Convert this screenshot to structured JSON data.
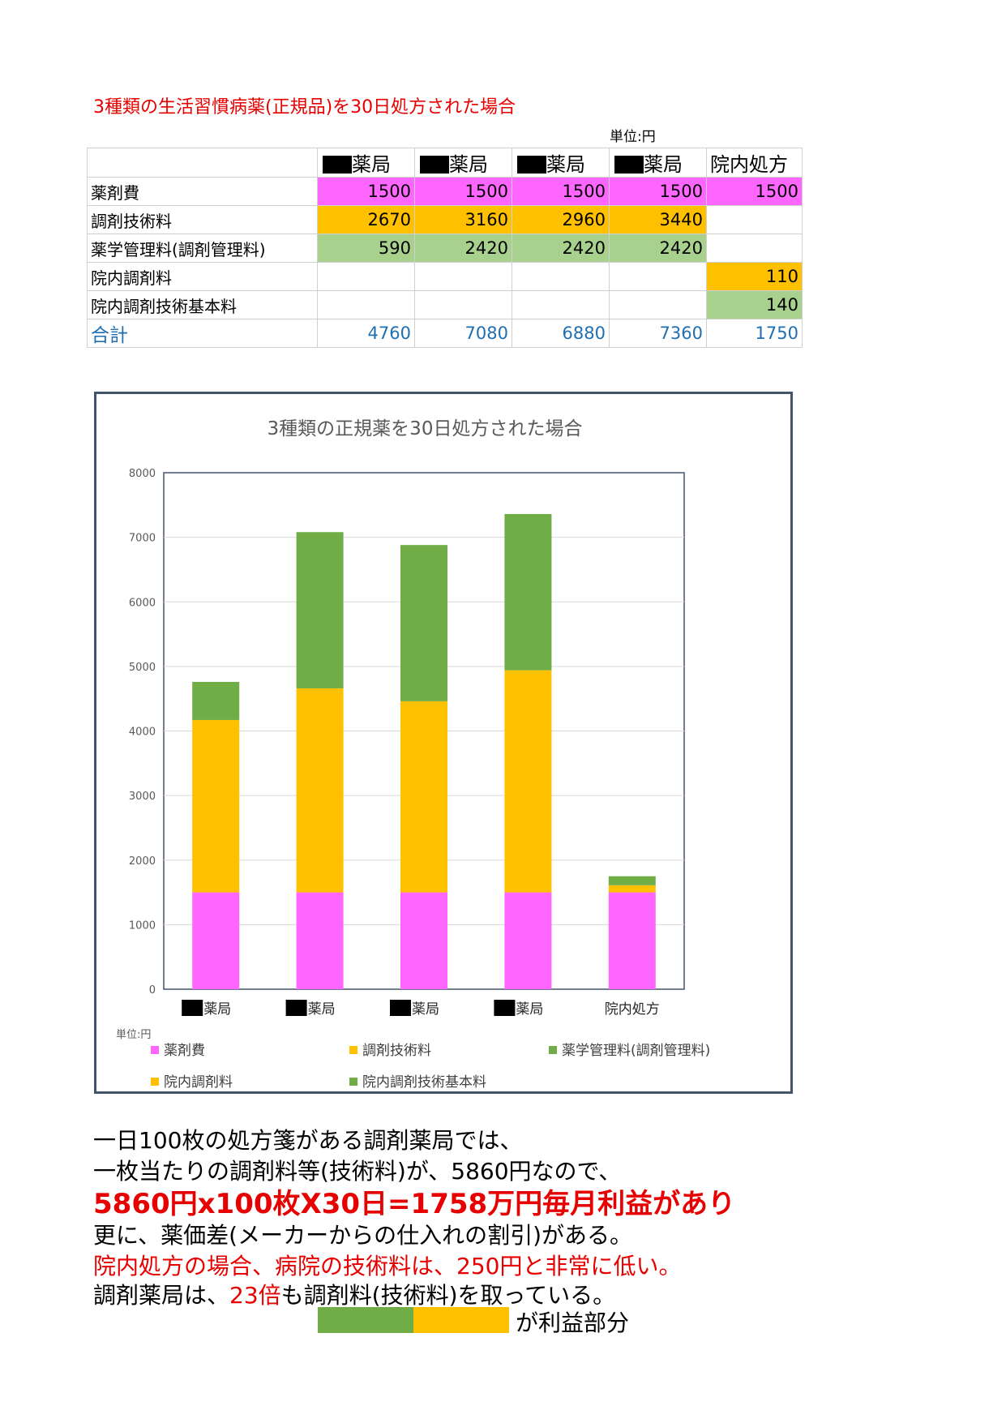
{
  "document": {
    "title": "3種類の生活習慣病薬(正規品)を30日処方された場合",
    "unit_label": "単位:円"
  },
  "table": {
    "columns": [
      "薬局",
      "薬局",
      "薬局",
      "薬局",
      "院内処方"
    ],
    "rows": [
      {
        "label": "薬剤費",
        "values": [
          "1500",
          "1500",
          "1500",
          "1500",
          "1500"
        ],
        "fills": [
          "pink",
          "pink",
          "pink",
          "pink",
          "pink"
        ]
      },
      {
        "label": "調剤技術料",
        "values": [
          "2670",
          "3160",
          "2960",
          "3440",
          ""
        ],
        "fills": [
          "orange",
          "orange",
          "orange",
          "orange",
          ""
        ]
      },
      {
        "label": "薬学管理料(調剤管理料)",
        "values": [
          "590",
          "2420",
          "2420",
          "2420",
          ""
        ],
        "fills": [
          "green",
          "green",
          "green",
          "green",
          ""
        ]
      },
      {
        "label": "院内調剤料",
        "values": [
          "",
          "",
          "",
          "",
          "110"
        ],
        "fills": [
          "",
          "",
          "",
          "",
          "orange"
        ]
      },
      {
        "label": "院内調剤技術基本料",
        "values": [
          "",
          "",
          "",
          "",
          "140"
        ],
        "fills": [
          "",
          "",
          "",
          "",
          "green"
        ]
      }
    ],
    "total": {
      "label": "合計",
      "values": [
        "4760",
        "7080",
        "6880",
        "7360",
        "1750"
      ]
    }
  },
  "chart_data": {
    "type": "bar",
    "stacked": true,
    "title": "3種類の正規薬を30日処方された場合",
    "categories": [
      "薬局",
      "薬局",
      "薬局",
      "薬局",
      "院内処方"
    ],
    "redacted_prefix": [
      true,
      true,
      true,
      true,
      false
    ],
    "series": [
      {
        "name": "薬剤費",
        "color": "#ff66ff",
        "values": [
          1500,
          1500,
          1500,
          1500,
          1500
        ]
      },
      {
        "name": "調剤技術料",
        "color": "#ffc000",
        "values": [
          2670,
          3160,
          2960,
          3440,
          0
        ]
      },
      {
        "name": "薬学管理料(調剤管理料)",
        "color": "#70ad47",
        "values": [
          590,
          2420,
          2420,
          2420,
          0
        ]
      },
      {
        "name": "院内調剤料",
        "color": "#ffc000",
        "values": [
          0,
          0,
          0,
          0,
          110
        ]
      },
      {
        "name": "院内調剤技術基本料",
        "color": "#70ad47",
        "values": [
          0,
          0,
          0,
          0,
          140
        ]
      }
    ],
    "ylim": [
      0,
      8000
    ],
    "yticks": [
      0,
      1000,
      2000,
      3000,
      4000,
      5000,
      6000,
      7000,
      8000
    ],
    "grid": true,
    "legend_position": "bottom",
    "unit_label": "単位:円"
  },
  "text": {
    "line1": "一日100枚の処方箋がある調剤薬局では、",
    "line2": "一枚当たりの調剤料等(技術料)が、5860円なので、",
    "line3": "5860円x100枚X30日=1758万円毎月利益があり",
    "line4": "更に、薬価差(メーカーからの仕入れの割引)がある。",
    "line5": "院内処方の場合、病院の技術料は、250円と非常に低い。",
    "line6_a": "調剤薬局は、",
    "line6_b": "23倍",
    "line6_c": "も調剤料(技術料)を取っている。",
    "profit": "が利益部分"
  }
}
